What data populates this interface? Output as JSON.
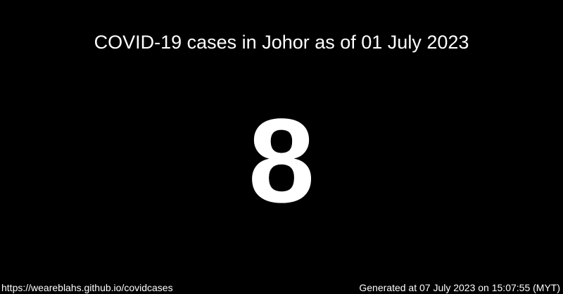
{
  "title": "COVID-19 cases in Johor as of 01 July 2023",
  "case_count": "8",
  "footer": {
    "url": "https://weareblahs.github.io/covidcases",
    "generated": "Generated at 07 July 2023 on 15:07:55 (MYT)"
  },
  "colors": {
    "background": "#000000",
    "text": "#ffffff"
  }
}
